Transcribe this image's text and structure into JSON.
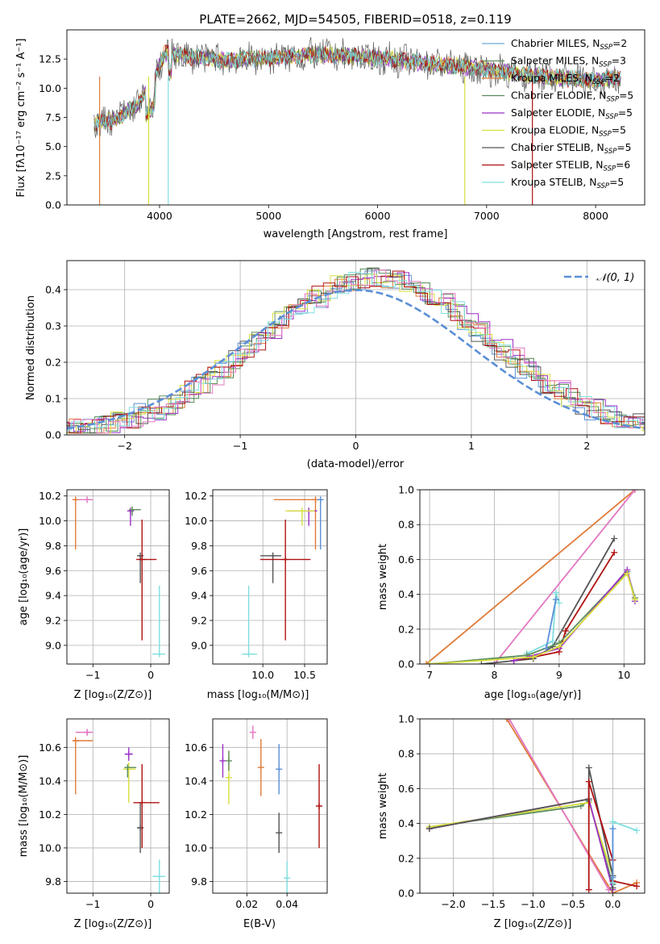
{
  "chart_data": [
    {
      "id": "spectrum",
      "type": "line",
      "title": "PLATE=2662, MJD=54505, FIBERID=0518, z=0.119",
      "xlabel": "wavelength [Angstrom, rest frame]",
      "ylabel": "Flux [fλ10⁻¹⁷ erg cm⁻² s⁻¹ A⁻¹]",
      "xlim": [
        3150,
        8450
      ],
      "ylim": [
        0,
        15
      ],
      "xticks": [
        4000,
        5000,
        6000,
        7000,
        8000
      ],
      "yticks": [
        0.0,
        2.5,
        5.0,
        7.5,
        10.0,
        12.5
      ],
      "grid": false,
      "legend_position": "right",
      "continuum": {
        "x": [
          3400,
          3600,
          3800,
          3950,
          4050,
          4300,
          4600,
          5000,
          5500,
          6000,
          6500,
          7000,
          7500,
          8000,
          8230
        ],
        "y": [
          7.0,
          7.3,
          8.6,
          10.8,
          13.0,
          12.7,
          12.4,
          12.6,
          12.9,
          12.6,
          12.1,
          11.6,
          11.0,
          10.7,
          10.9
        ]
      },
      "series": [
        {
          "name": "Chabrier MILES, N_SSP=2",
          "label": "Chabrier MILES, N",
          "sub": "SSP",
          "tail": "=2",
          "color": "#6fa8dc"
        },
        {
          "name": "Salpeter MILES, N_SSP=3",
          "label": "Salpeter MILES, N",
          "sub": "SSP",
          "tail": "=3",
          "color": "#5e8f5e"
        },
        {
          "name": "Kroupa MILES, N_SSP=2",
          "label": "Kroupa MILES, N",
          "sub": "SSP",
          "tail": "=2",
          "color": "#e07b39"
        },
        {
          "name": "Chabrier ELODIE, N_SSP=5",
          "label": "Chabrier ELODIE, N",
          "sub": "SSP",
          "tail": "=5",
          "color": "#5a8a5a"
        },
        {
          "name": "Salpeter ELODIE, N_SSP=5",
          "label": "Salpeter ELODIE, N",
          "sub": "SSP",
          "tail": "=5",
          "color": "#9b30c8"
        },
        {
          "name": "Kroupa ELODIE, N_SSP=5",
          "label": "Kroupa ELODIE, N",
          "sub": "SSP",
          "tail": "=5",
          "color": "#d8df3e"
        },
        {
          "name": "Chabrier STELIB, N_SSP=5",
          "label": "Chabrier STELIB, N",
          "sub": "SSP",
          "tail": "=5",
          "color": "#555555"
        },
        {
          "name": "Salpeter STELIB, N_SSP=6",
          "label": "Salpeter STELIB, N",
          "sub": "SSP",
          "tail": "=6",
          "color": "#b01010"
        },
        {
          "name": "Kroupa STELIB, N_SSP=5",
          "label": "Kroupa STELIB, N",
          "sub": "SSP",
          "tail": "=5",
          "color": "#7fdede"
        }
      ]
    },
    {
      "id": "residuals",
      "type": "bar",
      "xlabel": "(data-model)/error",
      "ylabel": "Normed distribution",
      "xlim": [
        -2.5,
        2.5
      ],
      "ylim": [
        0,
        0.48
      ],
      "xticks": [
        -2,
        -1,
        0,
        1,
        2
      ],
      "yticks": [
        0.0,
        0.1,
        0.2,
        0.3,
        0.4
      ],
      "grid": true,
      "legend_position": "top-right",
      "normal_curve": {
        "label": "𝒩(0, 1)",
        "mean": 0,
        "sd": 1,
        "color": "#5b8fd6"
      },
      "bin_width": 0.1,
      "series_colors": [
        "#5b8fd6",
        "#5e8f5e",
        "#e07b39",
        "#4f8a4f",
        "#9b30c8",
        "#d8df3e",
        "#555555",
        "#b01010",
        "#7fdede",
        "#e377c2"
      ]
    },
    {
      "id": "age-vs-Z",
      "type": "scatter",
      "xlabel": "Z [log₁₀(Z/Z⊙)]",
      "ylabel": "age [log₁₀(age/yr)]",
      "xlim": [
        -1.45,
        0.32
      ],
      "ylim": [
        8.85,
        10.25
      ],
      "xticks": [
        -1,
        0
      ],
      "yticks": [
        9.0,
        9.2,
        9.4,
        9.6,
        9.8,
        10.0,
        10.2
      ],
      "grid": true,
      "points": [
        {
          "x": -1.1,
          "y": 10.17,
          "xerr": [
            0.2,
            0.1
          ],
          "yerr": [
            0.0,
            0.0
          ],
          "color": "#e377c2"
        },
        {
          "x": -1.3,
          "y": 10.17,
          "xerr": [
            0.03,
            0.0
          ],
          "yerr": [
            0.4,
            0.0
          ],
          "color": "#e07b39"
        },
        {
          "x": -0.35,
          "y": 10.08,
          "xerr": [
            0.05,
            0.05
          ],
          "yerr": [
            0.12,
            0.0
          ],
          "color": "#9b30c8"
        },
        {
          "x": -0.32,
          "y": 10.09,
          "xerr": [
            0.0,
            0.15
          ],
          "yerr": [
            0.05,
            0.0
          ],
          "color": "#5e8f5e"
        },
        {
          "x": -0.18,
          "y": 9.72,
          "xerr": [
            0.05,
            0.05
          ],
          "yerr": [
            0.22,
            0.0
          ],
          "color": "#555555"
        },
        {
          "x": -0.15,
          "y": 9.69,
          "xerr": [
            0.1,
            0.25
          ],
          "yerr": [
            0.65,
            0.32
          ],
          "color": "#b01010"
        },
        {
          "x": 0.15,
          "y": 8.93,
          "xerr": [
            0.12,
            0.1
          ],
          "yerr": [
            0.0,
            0.55
          ],
          "color": "#7fdede"
        }
      ]
    },
    {
      "id": "age-vs-mass",
      "type": "scatter",
      "xlabel": "mass [log₁₀(M/M⊙)]",
      "ylabel": "",
      "xlim": [
        9.4,
        10.77
      ],
      "ylim": [
        8.85,
        10.25
      ],
      "xticks": [
        10.0,
        10.5
      ],
      "yticks": [
        9.0,
        9.2,
        9.4,
        9.6,
        9.8,
        10.0,
        10.2
      ],
      "grid": true,
      "points": [
        {
          "x": 10.63,
          "y": 10.17,
          "xerr": [
            0.5,
            0.05
          ],
          "yerr": [
            0.4,
            0.0
          ],
          "color": "#e07b39"
        },
        {
          "x": 10.69,
          "y": 10.17,
          "xerr": [
            0.0,
            0.02
          ],
          "yerr": [
            0.4,
            0.0
          ],
          "color": "#5b8fd6"
        },
        {
          "x": 10.55,
          "y": 10.08,
          "xerr": [
            0.25,
            0.1
          ],
          "yerr": [
            0.12,
            0.0
          ],
          "color": "#9b30c8"
        },
        {
          "x": 10.47,
          "y": 10.08,
          "xerr": [
            0.2,
            0.15
          ],
          "yerr": [
            0.12,
            0.0
          ],
          "color": "#d8df3e"
        },
        {
          "x": 10.12,
          "y": 9.72,
          "xerr": [
            0.15,
            0.1
          ],
          "yerr": [
            0.22,
            0.0
          ],
          "color": "#555555"
        },
        {
          "x": 10.27,
          "y": 9.69,
          "xerr": [
            0.3,
            0.3
          ],
          "yerr": [
            0.65,
            0.32
          ],
          "color": "#b01010"
        },
        {
          "x": 9.83,
          "y": 8.93,
          "xerr": [
            0.08,
            0.1
          ],
          "yerr": [
            0.0,
            0.55
          ],
          "color": "#7fdede"
        }
      ]
    },
    {
      "id": "mass-weight-vs-age",
      "type": "line",
      "xlabel": "age [log₁₀(age/yr)]",
      "ylabel": "mass weight",
      "xlim": [
        6.85,
        10.32
      ],
      "ylim": [
        0,
        1.0
      ],
      "xticks": [
        7,
        8,
        9,
        10
      ],
      "yticks": [
        0.0,
        0.2,
        0.4,
        0.6,
        0.8,
        1.0
      ],
      "grid": true,
      "series": [
        {
          "color": "#e07b39",
          "x": [
            6.95,
            10.17
          ],
          "y": [
            0.0,
            1.0
          ]
        },
        {
          "color": "#e377c2",
          "x": [
            8.0,
            10.17
          ],
          "y": [
            0.0,
            1.0
          ]
        },
        {
          "color": "#555555",
          "x": [
            7.8,
            8.6,
            8.9,
            9.85
          ],
          "y": [
            0.0,
            0.03,
            0.1,
            0.72
          ]
        },
        {
          "color": "#b01010",
          "x": [
            8.3,
            8.6,
            9.0,
            9.1,
            9.85
          ],
          "y": [
            0.02,
            0.04,
            0.07,
            0.19,
            0.64
          ]
        },
        {
          "color": "#7fdede",
          "x": [
            8.5,
            8.9,
            8.95,
            9.0
          ],
          "y": [
            0.06,
            0.13,
            0.41,
            0.35
          ]
        },
        {
          "color": "#5e8f5e",
          "x": [
            7.0,
            8.5,
            9.0,
            10.05,
            10.17
          ],
          "y": [
            0.0,
            0.05,
            0.12,
            0.53,
            0.38
          ]
        },
        {
          "color": "#9b30c8",
          "x": [
            8.3,
            9.0,
            10.05,
            10.17
          ],
          "y": [
            0.02,
            0.09,
            0.54,
            0.36
          ]
        },
        {
          "color": "#d8df3e",
          "x": [
            7.0,
            8.6,
            9.0,
            10.05,
            10.17
          ],
          "y": [
            0.0,
            0.04,
            0.1,
            0.52,
            0.37
          ]
        },
        {
          "color": "#5b8fd6",
          "x": [
            8.8,
            8.95
          ],
          "y": [
            0.09,
            0.37
          ]
        }
      ]
    },
    {
      "id": "mass-vs-Z",
      "type": "scatter",
      "xlabel": "Z [log₁₀(Z/Z⊙)]",
      "ylabel": "mass [log₁₀(M/M⊙)]",
      "xlim": [
        -1.45,
        0.32
      ],
      "ylim": [
        9.73,
        10.77
      ],
      "xticks": [
        -1,
        0
      ],
      "yticks": [
        9.8,
        10.0,
        10.2,
        10.4,
        10.6
      ],
      "grid": true,
      "points": [
        {
          "x": -1.1,
          "y": 10.69,
          "xerr": [
            0.2,
            0.1
          ],
          "yerr": [
            0.02,
            0.02
          ],
          "color": "#e377c2"
        },
        {
          "x": -1.3,
          "y": 10.64,
          "xerr": [
            0.03,
            0.3
          ],
          "yerr": [
            0.32,
            0.02
          ],
          "color": "#e07b39"
        },
        {
          "x": -0.38,
          "y": 10.56,
          "xerr": [
            0.07,
            0.07
          ],
          "yerr": [
            0.04,
            0.04
          ],
          "color": "#9b30c8"
        },
        {
          "x": -0.38,
          "y": 10.47,
          "xerr": [
            0.1,
            0.12
          ],
          "yerr": [
            0.2,
            0.04
          ],
          "color": "#d8df3e"
        },
        {
          "x": -0.4,
          "y": 10.48,
          "xerr": [
            0.05,
            0.15
          ],
          "yerr": [
            0.06,
            0.0
          ],
          "color": "#5e8f5e"
        },
        {
          "x": -0.18,
          "y": 10.12,
          "xerr": [
            0.05,
            0.05
          ],
          "yerr": [
            0.15,
            0.15
          ],
          "color": "#555555"
        },
        {
          "x": -0.15,
          "y": 10.27,
          "xerr": [
            0.15,
            0.3
          ],
          "yerr": [
            0.27,
            0.23
          ],
          "color": "#b01010"
        },
        {
          "x": 0.15,
          "y": 9.83,
          "xerr": [
            0.12,
            0.1
          ],
          "yerr": [
            0.1,
            0.1
          ],
          "color": "#7fdede"
        }
      ]
    },
    {
      "id": "mass-vs-EBV",
      "type": "scatter",
      "xlabel": "E(B-V)",
      "ylabel": "",
      "xlim": [
        0.003,
        0.06
      ],
      "ylim": [
        9.73,
        10.77
      ],
      "xticks": [
        0.02,
        0.04
      ],
      "xticklabels": [
        "0.02",
        "0.04"
      ],
      "yticks": [
        9.8,
        10.0,
        10.2,
        10.4,
        10.6
      ],
      "grid": true,
      "points": [
        {
          "x": 0.008,
          "y": 10.52,
          "yerr": [
            0.1,
            0.1
          ],
          "color": "#9b30c8"
        },
        {
          "x": 0.011,
          "y": 10.42,
          "yerr": [
            0.16,
            0.16
          ],
          "color": "#d8df3e"
        },
        {
          "x": 0.011,
          "y": 10.52,
          "yerr": [
            0.06,
            0.06
          ],
          "color": "#5e8f5e"
        },
        {
          "x": 0.023,
          "y": 10.69,
          "yerr": [
            0.04,
            0.04
          ],
          "color": "#e377c2"
        },
        {
          "x": 0.027,
          "y": 10.48,
          "yerr": [
            0.17,
            0.17
          ],
          "color": "#e07b39"
        },
        {
          "x": 0.036,
          "y": 10.47,
          "yerr": [
            0.15,
            0.15
          ],
          "color": "#5b8fd6"
        },
        {
          "x": 0.036,
          "y": 10.09,
          "yerr": [
            0.12,
            0.12
          ],
          "color": "#555555"
        },
        {
          "x": 0.04,
          "y": 9.82,
          "yerr": [
            0.1,
            0.1
          ],
          "color": "#7fdede"
        },
        {
          "x": 0.056,
          "y": 10.25,
          "yerr": [
            0.25,
            0.25
          ],
          "color": "#b01010"
        }
      ]
    },
    {
      "id": "mass-weight-vs-Z",
      "type": "line",
      "xlabel": "Z [log₁₀(Z/Z⊙)]",
      "ylabel": "mass weight",
      "xlim": [
        -2.42,
        0.4
      ],
      "ylim": [
        0,
        1.0
      ],
      "xticks": [
        -2.0,
        -1.5,
        -1.0,
        -0.5,
        0.0
      ],
      "yticks": [
        0.0,
        0.2,
        0.4,
        0.6,
        0.8,
        1.0
      ],
      "grid": true,
      "series": [
        {
          "color": "#e07b39",
          "x": [
            -1.33,
            0.0,
            0.3
          ],
          "y": [
            1.0,
            0.0,
            0.06
          ]
        },
        {
          "color": "#e377c2",
          "x": [
            -1.3,
            -0.05
          ],
          "y": [
            1.0,
            0.02
          ]
        },
        {
          "color": "#5e8f5e",
          "x": [
            -2.3,
            -0.4,
            -0.3,
            0.0
          ],
          "y": [
            0.38,
            0.5,
            0.53,
            0.05
          ]
        },
        {
          "color": "#d8df3e",
          "x": [
            -2.3,
            -0.3,
            0.0
          ],
          "y": [
            0.38,
            0.52,
            0.1
          ]
        },
        {
          "color": "#9b30c8",
          "x": [
            -2.3,
            -0.3,
            0.0
          ],
          "y": [
            0.37,
            0.54,
            0.02
          ]
        },
        {
          "color": "#555555",
          "x": [
            -2.3,
            -0.3,
            -0.3,
            0.0,
            0.0
          ],
          "y": [
            0.37,
            0.54,
            0.72,
            0.1,
            0.03
          ]
        },
        {
          "color": "#b01010",
          "x": [
            -0.3,
            -0.3,
            0.0,
            0.0,
            0.3
          ],
          "y": [
            0.02,
            0.64,
            0.19,
            0.07,
            0.04
          ]
        },
        {
          "color": "#7fdede",
          "x": [
            0.0,
            0.0,
            0.3
          ],
          "y": [
            0.06,
            0.41,
            0.36
          ]
        },
        {
          "color": "#5b8fd6",
          "x": [
            0.0,
            0.0
          ],
          "y": [
            0.09,
            0.37
          ]
        }
      ]
    }
  ]
}
